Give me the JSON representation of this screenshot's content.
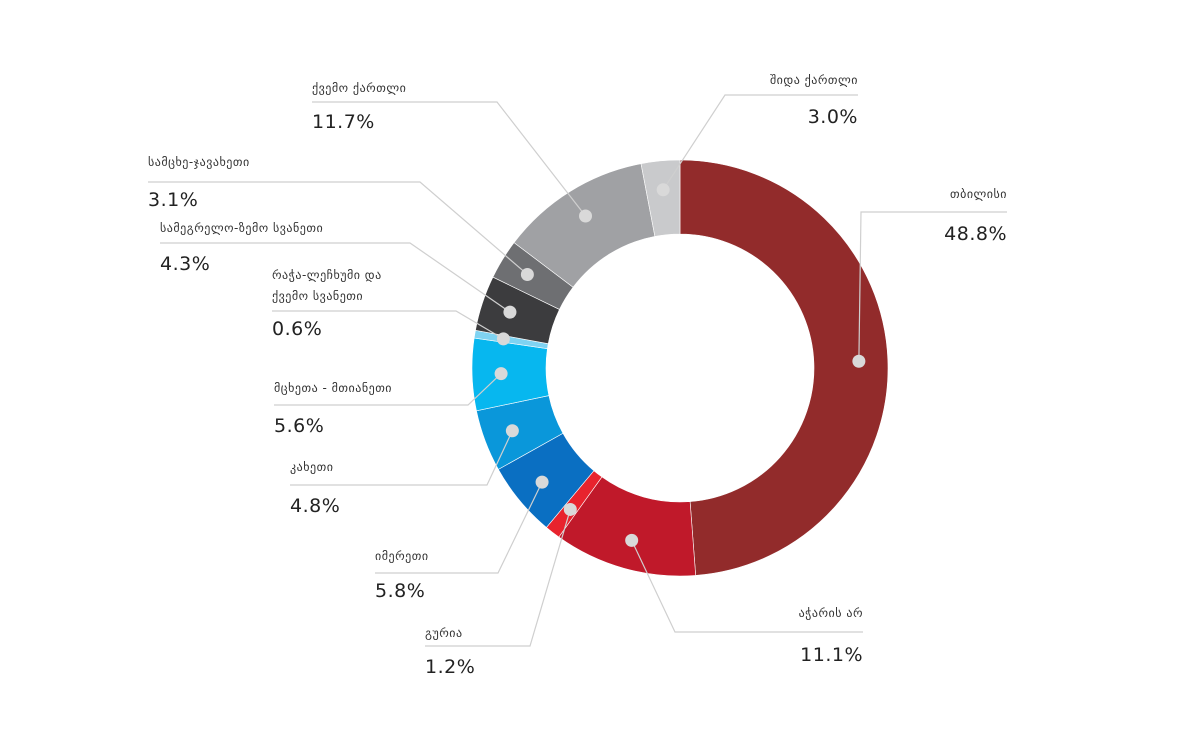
{
  "chart_data": {
    "type": "pie",
    "variant": "donut",
    "start_angle_deg": 0,
    "direction": "clockwise",
    "slices": [
      {
        "label": "თბილისი",
        "value_label": "48.8%",
        "value": 48.8,
        "color": "#922b2b"
      },
      {
        "label": "აჭარის არ",
        "value_label": "11.1%",
        "value": 11.1,
        "color": "#c0192a"
      },
      {
        "label": "გურია",
        "value_label": "1.2%",
        "value": 1.2,
        "color": "#e8232d"
      },
      {
        "label": "იმერეთი",
        "value_label": "5.8%",
        "value": 5.8,
        "color": "#0a6fc2"
      },
      {
        "label": "კახეთი",
        "value_label": "4.8%",
        "value": 4.8,
        "color": "#0a97da"
      },
      {
        "label": "მცხეთა - მთიანეთი",
        "value_label": "5.6%",
        "value": 5.6,
        "color": "#07b7ef"
      },
      {
        "label": "რაჭა-ლეჩხუმი და ქვემო სვანეთი",
        "value_label": "0.6%",
        "value": 0.6,
        "color": "#7fd3f2"
      },
      {
        "label": "სამეგრელო-ზემო სვანეთი",
        "value_label": "4.3%",
        "value": 4.3,
        "color": "#3c3c3e"
      },
      {
        "label": "სამცხე-ჯავახეთი",
        "value_label": "3.1%",
        "value": 3.1,
        "color": "#6e6f72"
      },
      {
        "label": "ქვემო ქართლი",
        "value_label": "11.7%",
        "value": 11.7,
        "color": "#a0a1a4"
      },
      {
        "label": "შიდა ქართლი",
        "value_label": "3.0%",
        "value": 3.0,
        "color": "#c9cacc"
      }
    ]
  }
}
